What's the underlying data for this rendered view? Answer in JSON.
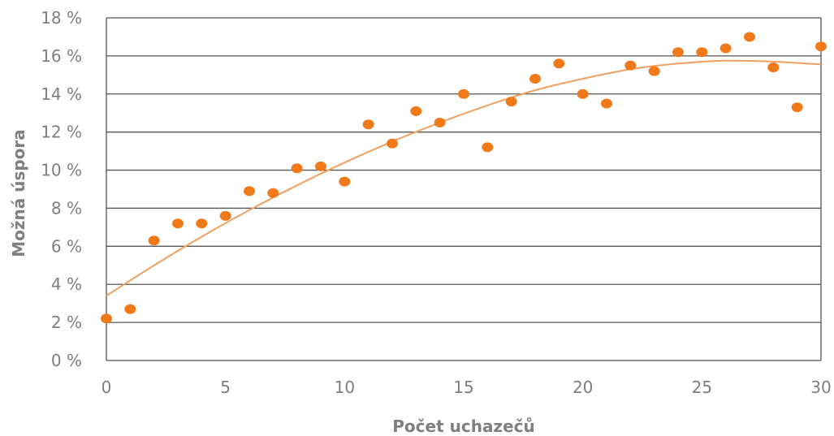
{
  "chart_data": {
    "type": "scatter",
    "xlabel": "Počet uchazečů",
    "ylabel": "Možná úspora",
    "xlim": [
      0,
      30
    ],
    "ylim": [
      0,
      18
    ],
    "x_ticks": [
      "0",
      "5",
      "10",
      "15",
      "20",
      "25",
      "30"
    ],
    "y_ticks": [
      "0 %",
      "2 %",
      "4 %",
      "6 %",
      "8 %",
      "10 %",
      "12 %",
      "14 %",
      "16 %",
      "18 %"
    ],
    "grid": true,
    "colors": {
      "points": "#f07a1a",
      "trend": "#f0a060",
      "grid": "#555555",
      "text": "#7f7f7f"
    },
    "points": [
      {
        "x": 0,
        "y": 2.2
      },
      {
        "x": 1,
        "y": 2.7
      },
      {
        "x": 2,
        "y": 6.3
      },
      {
        "x": 3,
        "y": 7.2
      },
      {
        "x": 4,
        "y": 7.2
      },
      {
        "x": 5,
        "y": 7.6
      },
      {
        "x": 6,
        "y": 8.9
      },
      {
        "x": 7,
        "y": 8.8
      },
      {
        "x": 8,
        "y": 10.1
      },
      {
        "x": 9,
        "y": 10.2
      },
      {
        "x": 10,
        "y": 9.4
      },
      {
        "x": 11,
        "y": 12.4
      },
      {
        "x": 12,
        "y": 11.4
      },
      {
        "x": 13,
        "y": 13.1
      },
      {
        "x": 14,
        "y": 12.5
      },
      {
        "x": 15,
        "y": 14.0
      },
      {
        "x": 16,
        "y": 11.2
      },
      {
        "x": 17,
        "y": 13.6
      },
      {
        "x": 18,
        "y": 14.8
      },
      {
        "x": 19,
        "y": 15.6
      },
      {
        "x": 20,
        "y": 14.0
      },
      {
        "x": 21,
        "y": 13.5
      },
      {
        "x": 22,
        "y": 15.5
      },
      {
        "x": 23,
        "y": 15.2
      },
      {
        "x": 24,
        "y": 16.2
      },
      {
        "x": 25,
        "y": 16.2
      },
      {
        "x": 26,
        "y": 16.4
      },
      {
        "x": 27,
        "y": 17.0
      },
      {
        "x": 28,
        "y": 15.4
      },
      {
        "x": 29,
        "y": 13.3
      },
      {
        "x": 30,
        "y": 16.5
      }
    ],
    "trendline": {
      "type": "polynomial-2",
      "x": [
        0,
        2,
        4,
        6,
        8,
        10,
        12,
        14,
        16,
        18,
        20,
        22,
        24,
        26,
        28,
        30
      ],
      "y": [
        3.4,
        5.0,
        6.5,
        7.9,
        9.2,
        10.4,
        11.5,
        12.5,
        13.4,
        14.2,
        14.8,
        15.3,
        15.6,
        15.75,
        15.7,
        15.55
      ]
    }
  }
}
